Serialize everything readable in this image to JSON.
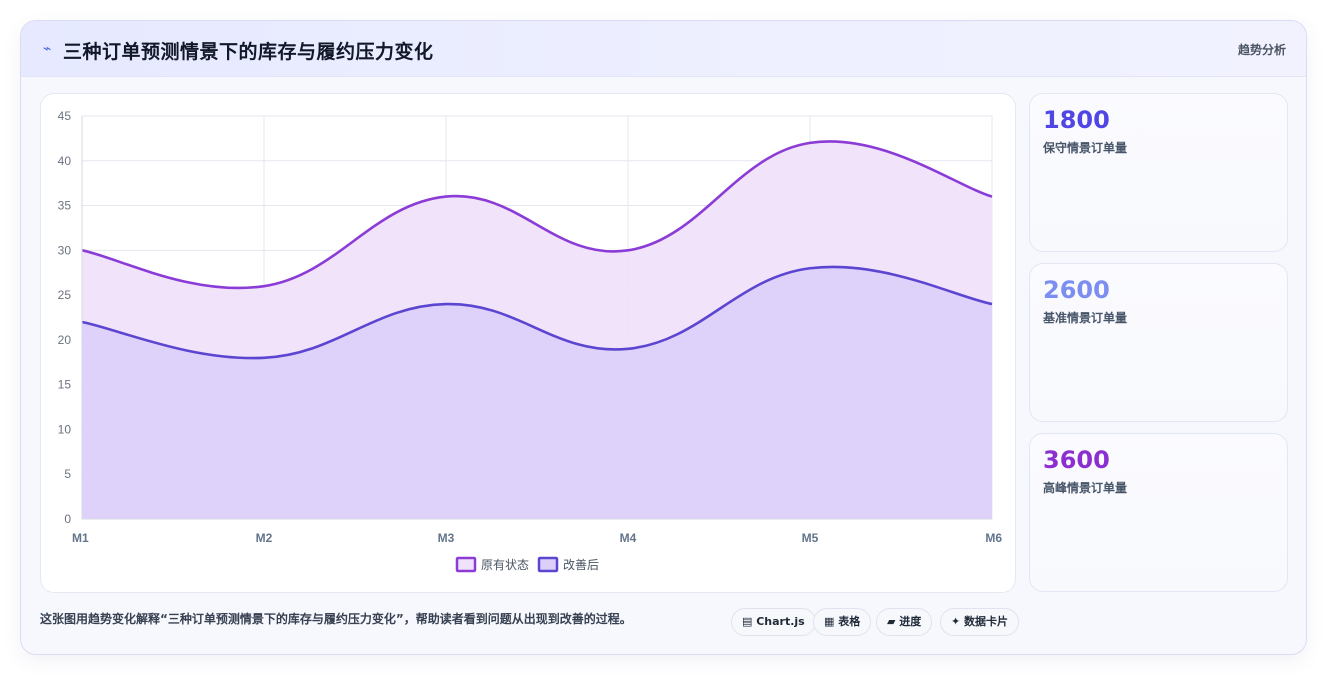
{
  "header": {
    "icon": "lightning-icon",
    "title": "三种订单预测情景下的库存与履约压力变化",
    "tag": "趋势分析"
  },
  "chart_data": {
    "type": "area",
    "x": [
      "M1",
      "M2",
      "M3",
      "M4",
      "M5",
      "M6"
    ],
    "ylim": [
      0,
      45
    ],
    "yticks": [
      0,
      5,
      10,
      15,
      20,
      25,
      30,
      35,
      40,
      45
    ],
    "grid": true,
    "legend": "bottom-center",
    "series": [
      {
        "name": "原有状态",
        "values": [
          30,
          26,
          36,
          30,
          42,
          36
        ],
        "color": "#8b3bd6",
        "fill": "#f0e2fa"
      },
      {
        "name": "改善后",
        "values": [
          22,
          18,
          24,
          19,
          28,
          24
        ],
        "color": "#5b45d1",
        "fill": "#dccffa"
      }
    ]
  },
  "kpis": [
    {
      "value": "1800",
      "label": "保守情景订单量",
      "color": "#4f46e5"
    },
    {
      "value": "2600",
      "label": "基准情景订单量",
      "color": "#7c8ef0"
    },
    {
      "value": "3600",
      "label": "高峰情景订单量",
      "color": "#8b2fd0"
    }
  ],
  "footer": {
    "description": "这张图用趋势变化解释“三种订单预测情景下的库存与履约压力变化”，帮助读者看到问题从出现到改善的过程。",
    "pills": [
      "▤ Chart.js",
      "▦ 表格",
      "▰ 进度",
      "✦ 数据卡片"
    ]
  }
}
